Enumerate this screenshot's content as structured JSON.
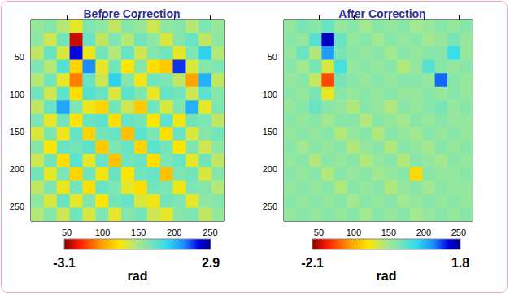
{
  "chart_data": [
    {
      "type": "heatmap",
      "title": "Before Correction",
      "x": [
        9,
        27,
        45,
        63,
        81,
        99,
        117,
        135,
        153,
        171,
        189,
        207,
        225,
        243,
        261
      ],
      "y": [
        9,
        27,
        45,
        63,
        81,
        99,
        117,
        135,
        153,
        171,
        189,
        207,
        225,
        243,
        261
      ],
      "values": [
        [
          0.1,
          0.3,
          -0.2,
          -0.6,
          0.4,
          0.2,
          -0.3,
          0.3,
          0.1,
          -0.4,
          0.2,
          0.3,
          -0.2,
          0.4,
          0.1
        ],
        [
          0.2,
          -0.4,
          0.5,
          -2.8,
          0.6,
          -0.3,
          0.4,
          -0.2,
          0.5,
          0.2,
          -0.5,
          0.3,
          0.6,
          -0.3,
          0.2
        ],
        [
          -0.3,
          0.6,
          -0.5,
          2.4,
          -0.7,
          0.5,
          -0.2,
          0.6,
          -0.4,
          0.3,
          0.5,
          -0.6,
          0.4,
          1.2,
          -0.2
        ],
        [
          0.4,
          -0.2,
          0.8,
          -1.0,
          1.8,
          -0.6,
          0.5,
          -0.8,
          0.3,
          -0.9,
          -1.1,
          2.2,
          -0.5,
          0.3,
          0.4
        ],
        [
          -0.2,
          0.5,
          -0.6,
          -1.8,
          0.6,
          -0.4,
          1.2,
          0.3,
          -0.7,
          0.5,
          0.4,
          -0.3,
          -1.5,
          1.5,
          -0.3
        ],
        [
          0.5,
          -0.4,
          0.7,
          -0.9,
          0.8,
          0.6,
          -0.5,
          0.7,
          0.4,
          -0.6,
          0.6,
          0.5,
          -0.4,
          0.7,
          0.3
        ],
        [
          -0.3,
          0.6,
          1.6,
          0.4,
          -0.7,
          -1.0,
          0.5,
          -0.4,
          -1.1,
          0.5,
          -0.5,
          0.4,
          1.5,
          -0.6,
          0.4
        ],
        [
          0.4,
          -0.6,
          0.5,
          -0.8,
          0.6,
          0.7,
          -0.9,
          0.6,
          0.5,
          -0.8,
          0.7,
          -0.7,
          0.5,
          0.4,
          -0.3
        ],
        [
          -0.5,
          0.4,
          -0.7,
          0.6,
          -1.0,
          0.5,
          0.6,
          -1.2,
          0.7,
          0.4,
          -0.9,
          0.6,
          -0.5,
          0.3,
          0.5
        ],
        [
          0.3,
          -0.8,
          0.6,
          0.5,
          0.7,
          -1.1,
          0.4,
          0.6,
          -1.0,
          0.7,
          0.5,
          -0.8,
          0.4,
          -0.4,
          0.2
        ],
        [
          -0.4,
          0.5,
          -0.9,
          0.7,
          -0.6,
          0.6,
          -1.2,
          0.5,
          0.6,
          -0.9,
          0.4,
          0.6,
          -0.6,
          0.5,
          -0.3
        ],
        [
          0.5,
          -0.6,
          0.4,
          -1.0,
          0.5,
          -0.7,
          0.6,
          -0.8,
          0.5,
          0.6,
          -1.2,
          0.4,
          0.5,
          -0.5,
          0.3
        ],
        [
          -0.3,
          0.4,
          -0.7,
          0.5,
          -0.9,
          0.6,
          0.4,
          -0.6,
          -0.9,
          0.5,
          0.4,
          -0.7,
          0.4,
          0.3,
          -0.2
        ],
        [
          0.2,
          -0.5,
          0.6,
          -0.6,
          0.4,
          -0.8,
          0.5,
          0.6,
          -0.5,
          -0.7,
          0.5,
          0.4,
          -0.6,
          0.2,
          0.3
        ],
        [
          -0.2,
          0.3,
          -0.4,
          0.5,
          -0.5,
          0.4,
          -0.6,
          0.3,
          0.5,
          -0.4,
          -0.6,
          0.3,
          0.4,
          -0.3,
          0.1
        ]
      ],
      "xlim": [
        0,
        270
      ],
      "ylim": [
        0,
        270
      ],
      "xticks": [
        50,
        100,
        150,
        200,
        250
      ],
      "yticks": [
        50,
        100,
        150,
        200,
        250
      ],
      "colorbar": {
        "range": [
          -3.1,
          2.9
        ],
        "ticks": [
          -3.1,
          2.9
        ],
        "label": "rad"
      }
    },
    {
      "type": "heatmap",
      "title": "After Correction",
      "x": [
        9,
        27,
        45,
        63,
        81,
        99,
        117,
        135,
        153,
        171,
        189,
        207,
        225,
        243,
        261
      ],
      "y": [
        9,
        27,
        45,
        63,
        81,
        99,
        117,
        135,
        153,
        171,
        189,
        207,
        225,
        243,
        261
      ],
      "values": [
        [
          0.0,
          0.2,
          0.1,
          0.3,
          0.0,
          0.1,
          -0.1,
          0.1,
          0.0,
          0.1,
          -0.1,
          0.0,
          0.1,
          0.0,
          0.1
        ],
        [
          0.1,
          0.0,
          0.4,
          1.6,
          0.3,
          0.0,
          0.1,
          -0.1,
          0.1,
          0.0,
          0.1,
          -0.1,
          0.0,
          0.2,
          0.0
        ],
        [
          0.0,
          0.3,
          -0.2,
          1.0,
          0.2,
          0.1,
          0.0,
          0.1,
          -0.1,
          0.1,
          0.0,
          0.1,
          0.1,
          0.6,
          0.0
        ],
        [
          0.1,
          -0.1,
          0.2,
          -0.4,
          0.5,
          0.0,
          0.1,
          0.0,
          0.1,
          -0.2,
          0.0,
          0.4,
          0.1,
          0.0,
          0.1
        ],
        [
          0.0,
          0.1,
          -0.3,
          -1.5,
          0.2,
          0.1,
          0.0,
          0.1,
          0.0,
          0.1,
          0.1,
          0.0,
          1.2,
          0.1,
          0.0
        ],
        [
          0.1,
          0.0,
          0.2,
          -0.5,
          0.1,
          0.0,
          0.1,
          0.0,
          0.1,
          0.0,
          0.0,
          0.1,
          0.0,
          0.1,
          0.0
        ],
        [
          0.0,
          0.1,
          0.3,
          0.1,
          0.0,
          -0.2,
          0.1,
          0.0,
          -0.2,
          0.1,
          0.0,
          0.1,
          0.2,
          0.0,
          0.1
        ],
        [
          0.1,
          0.0,
          0.1,
          -0.1,
          0.1,
          0.1,
          -0.2,
          0.1,
          0.0,
          -0.1,
          0.1,
          0.0,
          0.1,
          0.0,
          0.0
        ],
        [
          0.0,
          0.1,
          0.0,
          0.1,
          -0.2,
          0.0,
          0.1,
          -0.2,
          0.1,
          0.0,
          -0.1,
          0.1,
          0.0,
          0.1,
          0.0
        ],
        [
          0.1,
          -0.1,
          0.1,
          0.0,
          0.1,
          -0.2,
          0.0,
          0.1,
          -0.2,
          0.1,
          0.0,
          -0.1,
          0.1,
          0.0,
          0.1
        ],
        [
          0.0,
          0.1,
          -0.2,
          0.1,
          0.0,
          0.1,
          -0.2,
          0.0,
          0.1,
          -0.2,
          0.1,
          0.0,
          -0.1,
          0.1,
          0.0
        ],
        [
          0.1,
          0.0,
          0.1,
          -0.2,
          0.1,
          0.0,
          0.1,
          -0.1,
          0.0,
          0.1,
          -0.7,
          0.1,
          0.0,
          0.0,
          0.1
        ],
        [
          0.0,
          0.1,
          0.0,
          0.1,
          -0.2,
          0.1,
          0.0,
          0.1,
          -0.2,
          0.0,
          0.1,
          -0.1,
          0.1,
          0.0,
          0.0
        ],
        [
          0.1,
          0.0,
          0.1,
          0.0,
          0.1,
          -0.1,
          0.1,
          0.0,
          0.1,
          -0.1,
          0.0,
          0.1,
          0.0,
          0.1,
          0.0
        ],
        [
          0.0,
          0.1,
          0.0,
          0.1,
          0.0,
          0.1,
          -0.1,
          0.1,
          0.0,
          0.1,
          -0.1,
          0.0,
          0.1,
          0.0,
          0.1
        ]
      ],
      "xlim": [
        0,
        270
      ],
      "ylim": [
        0,
        270
      ],
      "xticks": [
        50,
        100,
        150,
        200,
        250
      ],
      "yticks": [
        50,
        100,
        150,
        200,
        250
      ],
      "colorbar": {
        "range": [
          -2.1,
          1.8
        ],
        "ticks": [
          -2.1,
          1.8
        ],
        "label": "rad"
      }
    }
  ]
}
